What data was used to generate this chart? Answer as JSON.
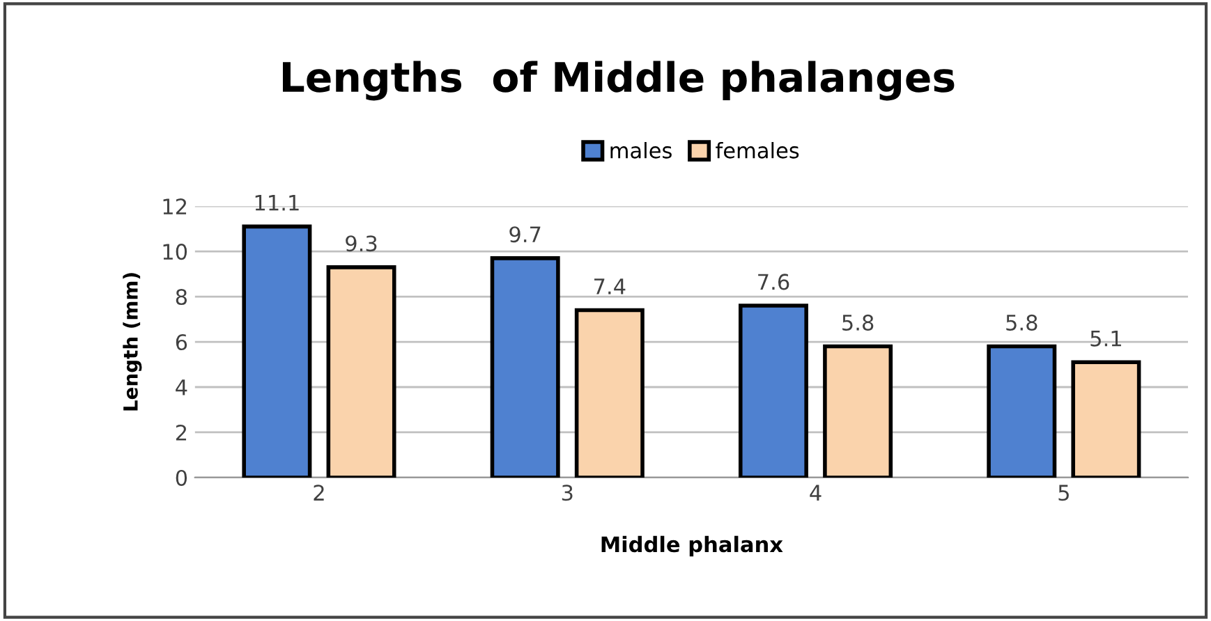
{
  "chart_data": {
    "type": "bar",
    "title": "Lengths  of Middle phalanges",
    "xlabel": "Middle phalanx",
    "ylabel": "Length (mm)",
    "categories": [
      "2",
      "3",
      "4",
      "5"
    ],
    "series": [
      {
        "name": "males",
        "color": "#4f81d0",
        "values": [
          11.1,
          9.7,
          7.6,
          5.8
        ]
      },
      {
        "name": "females",
        "color": "#fad3ac",
        "values": [
          9.3,
          7.4,
          5.8,
          5.1
        ]
      }
    ],
    "ylim": [
      0,
      12
    ],
    "yticks": [
      0,
      2,
      4,
      6,
      8,
      10,
      12
    ],
    "grid": "y",
    "legend": "top",
    "data_labels": true
  }
}
